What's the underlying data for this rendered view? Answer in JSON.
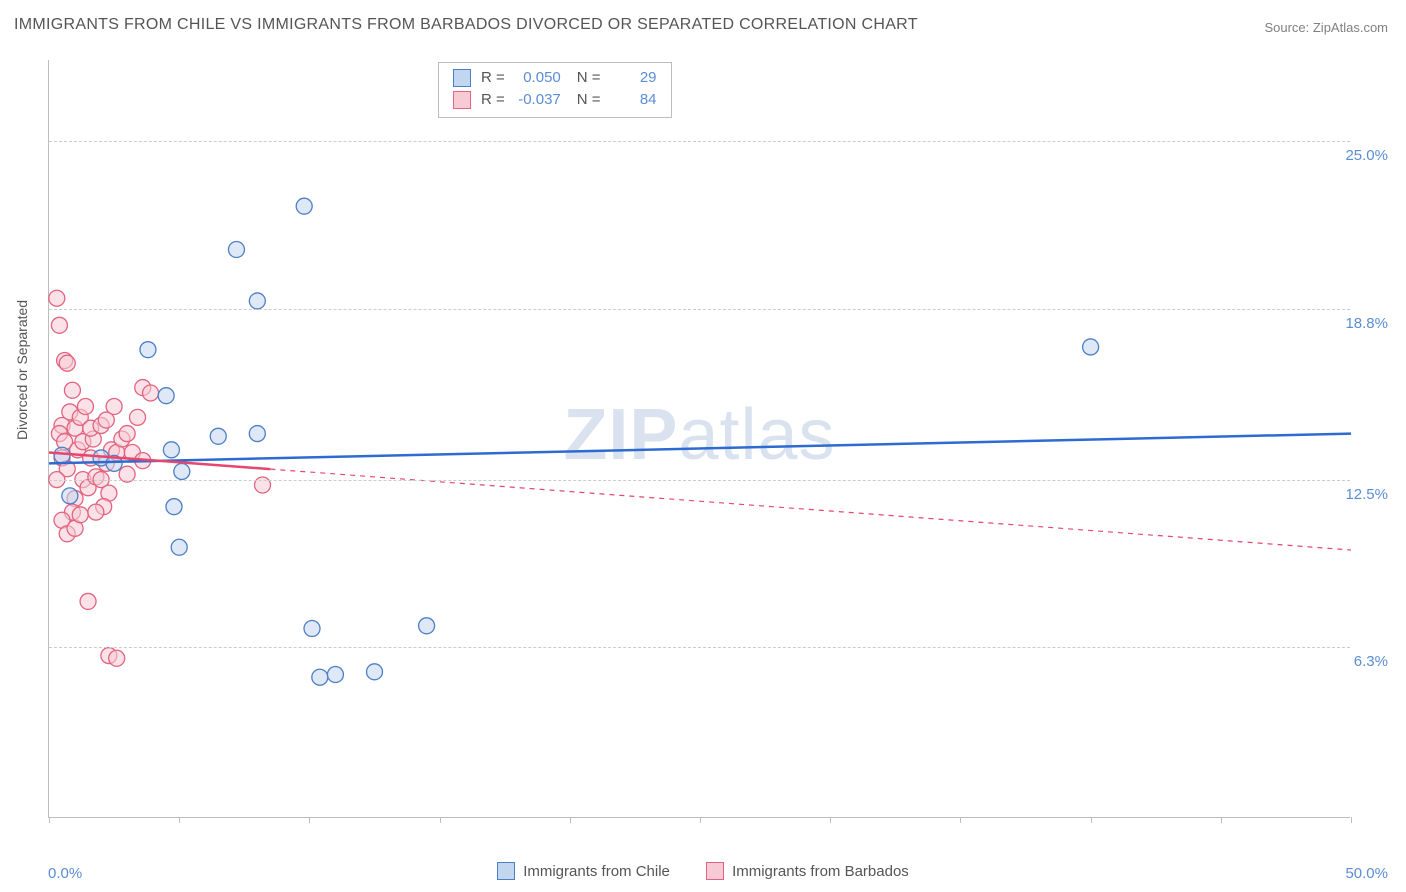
{
  "title": "IMMIGRANTS FROM CHILE VS IMMIGRANTS FROM BARBADOS DIVORCED OR SEPARATED CORRELATION CHART",
  "source": "Source: ZipAtlas.com",
  "ylabel": "Divorced or Separated",
  "watermark": "ZIPatlas",
  "chart": {
    "type": "scatter_with_trend",
    "background_color": "#ffffff",
    "grid_color": "#cccccc",
    "axis_color": "#bdbdbd",
    "tick_label_color": "#5b8dd6",
    "text_color": "#555555",
    "title_fontsize": 16,
    "label_fontsize": 14,
    "tick_fontsize": 15,
    "xlim": [
      0,
      50
    ],
    "ylim": [
      0,
      28
    ],
    "x_ticks": [
      0,
      5,
      10,
      15,
      20,
      25,
      30,
      35,
      40,
      45,
      50
    ],
    "x_tick_labels": {
      "0": "0.0%",
      "50": "50.0%"
    },
    "y_grid": [
      6.3,
      12.5,
      18.8,
      25.0
    ],
    "y_tick_labels": [
      "6.3%",
      "12.5%",
      "18.8%",
      "25.0%"
    ],
    "marker_radius": 8,
    "marker_opacity": 0.55,
    "line_width_solid": 2.5,
    "line_width_dash": 1.2,
    "dash_pattern": "5,5",
    "series": [
      {
        "name": "Immigrants from Chile",
        "color_fill": "#c2d6ef",
        "color_stroke": "#4d7fc6",
        "line_color": "#2d6bd1",
        "R": "0.050",
        "N": "29",
        "points": [
          [
            0.5,
            13.4
          ],
          [
            0.8,
            11.9
          ],
          [
            2.0,
            13.3
          ],
          [
            2.5,
            13.1
          ],
          [
            3.8,
            17.3
          ],
          [
            4.5,
            15.6
          ],
          [
            5.1,
            12.8
          ],
          [
            4.8,
            11.5
          ],
          [
            5.0,
            10.0
          ],
          [
            4.7,
            13.6
          ],
          [
            6.5,
            14.1
          ],
          [
            7.2,
            21.0
          ],
          [
            8.0,
            19.1
          ],
          [
            8.0,
            14.2
          ],
          [
            9.8,
            22.6
          ],
          [
            10.1,
            7.0
          ],
          [
            10.4,
            5.2
          ],
          [
            11.0,
            5.3
          ],
          [
            12.5,
            5.4
          ],
          [
            14.5,
            7.1
          ],
          [
            40.0,
            17.4
          ]
        ],
        "trend": {
          "y_at_xmin": 13.1,
          "y_at_xmax": 14.2,
          "solid_until_x": 50
        }
      },
      {
        "name": "Immigrants from Barbados",
        "color_fill": "#f7cad5",
        "color_stroke": "#e2647f",
        "line_color": "#e5476e",
        "R": "-0.037",
        "N": "84",
        "points": [
          [
            0.3,
            19.2
          ],
          [
            0.4,
            18.2
          ],
          [
            0.6,
            16.9
          ],
          [
            0.7,
            16.8
          ],
          [
            0.5,
            14.5
          ],
          [
            0.4,
            14.2
          ],
          [
            0.8,
            15.0
          ],
          [
            0.9,
            15.8
          ],
          [
            1.0,
            14.4
          ],
          [
            0.6,
            13.9
          ],
          [
            0.5,
            13.3
          ],
          [
            0.7,
            12.9
          ],
          [
            0.3,
            12.5
          ],
          [
            1.1,
            13.6
          ],
          [
            1.2,
            14.8
          ],
          [
            1.4,
            15.2
          ],
          [
            1.3,
            12.5
          ],
          [
            1.5,
            12.2
          ],
          [
            1.0,
            11.8
          ],
          [
            1.3,
            13.9
          ],
          [
            1.6,
            13.3
          ],
          [
            1.7,
            14.0
          ],
          [
            1.8,
            12.6
          ],
          [
            0.9,
            11.3
          ],
          [
            0.5,
            11.0
          ],
          [
            0.7,
            10.5
          ],
          [
            1.0,
            10.7
          ],
          [
            1.2,
            11.2
          ],
          [
            1.6,
            14.4
          ],
          [
            2.0,
            14.5
          ],
          [
            2.2,
            14.7
          ],
          [
            2.4,
            13.6
          ],
          [
            2.0,
            12.5
          ],
          [
            2.2,
            13.1
          ],
          [
            2.5,
            15.2
          ],
          [
            2.6,
            13.5
          ],
          [
            2.8,
            14.0
          ],
          [
            2.3,
            12.0
          ],
          [
            2.1,
            11.5
          ],
          [
            1.8,
            11.3
          ],
          [
            3.0,
            14.2
          ],
          [
            3.2,
            13.5
          ],
          [
            3.0,
            12.7
          ],
          [
            3.4,
            14.8
          ],
          [
            3.6,
            15.9
          ],
          [
            3.6,
            13.2
          ],
          [
            3.9,
            15.7
          ],
          [
            1.5,
            8.0
          ],
          [
            2.3,
            6.0
          ],
          [
            2.6,
            5.9
          ],
          [
            8.2,
            12.3
          ]
        ],
        "trend": {
          "y_at_xmin": 13.5,
          "y_at_xmax": 9.9,
          "solid_until_x": 8.5
        }
      }
    ]
  },
  "legend_top": {
    "r_label": "R =",
    "n_label": "N ="
  },
  "legend_bottom_labels": [
    "Immigrants from Chile",
    "Immigrants from Barbados"
  ]
}
